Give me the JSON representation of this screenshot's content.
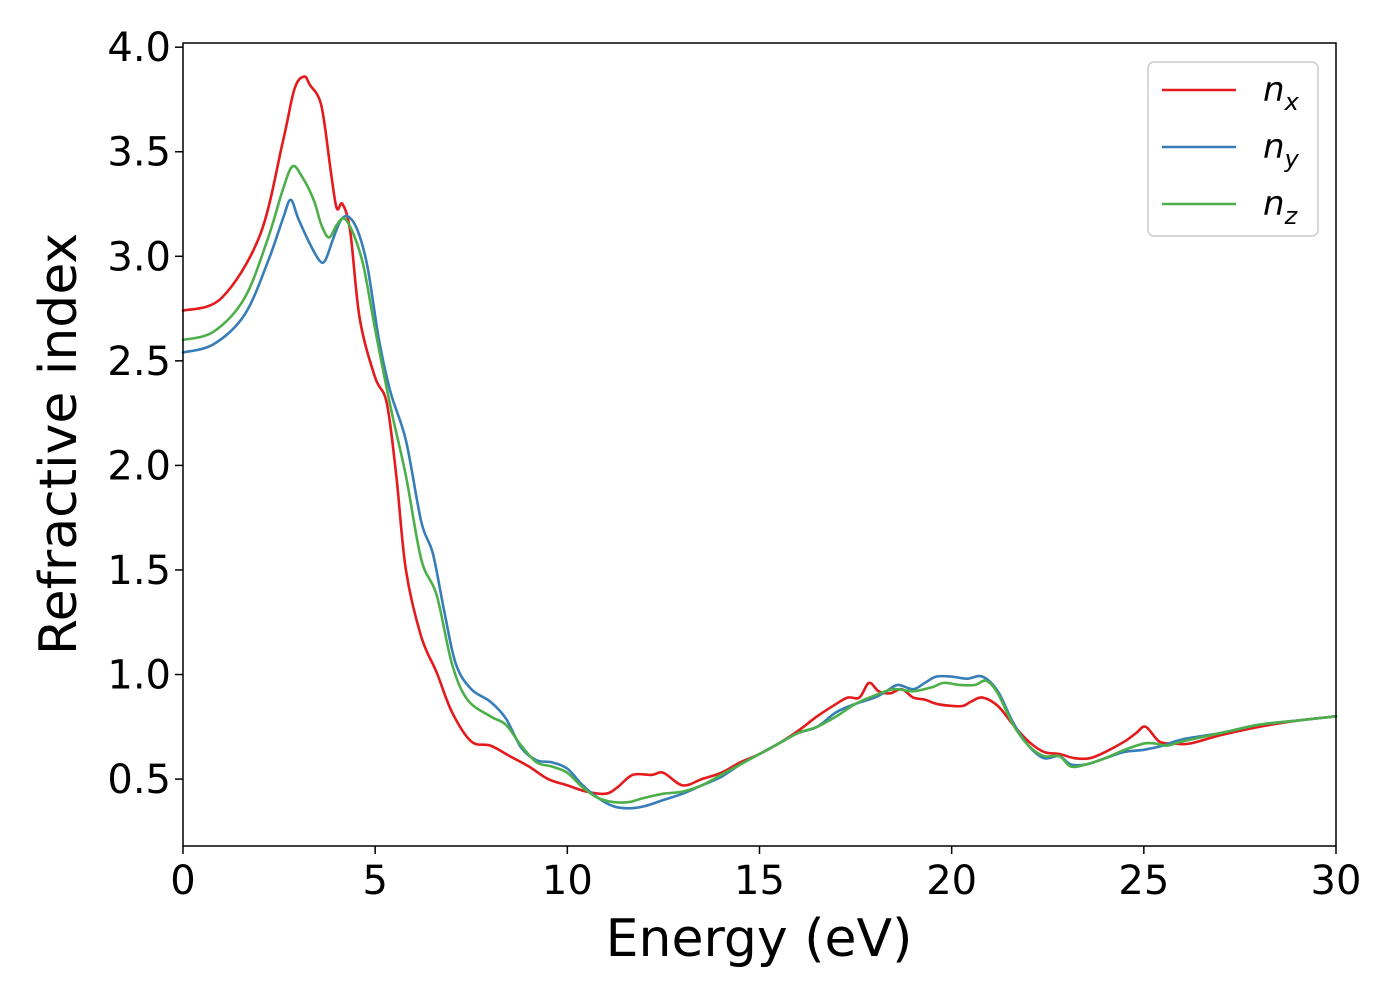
{
  "chart_data": {
    "type": "line",
    "xlabel": "Energy (eV)",
    "ylabel": "Refractive index",
    "xlim": [
      0,
      30
    ],
    "ylim": [
      0.18,
      4.02
    ],
    "x_ticks": [
      0,
      5,
      10,
      15,
      20,
      25,
      30
    ],
    "x_tick_labels": [
      "0",
      "5",
      "10",
      "15",
      "20",
      "25",
      "30"
    ],
    "y_ticks": [
      0.5,
      1.0,
      1.5,
      2.0,
      2.5,
      3.0,
      3.5,
      4.0
    ],
    "y_tick_labels": [
      "0.5",
      "1.0",
      "1.5",
      "2.0",
      "2.5",
      "3.0",
      "3.5",
      "4.0"
    ],
    "grid": false,
    "legend_position": "top-right",
    "series": [
      {
        "name": "n_x",
        "label_base": "n",
        "label_sub": "x",
        "color": "#e41a1c",
        "points": [
          [
            0,
            2.74
          ],
          [
            1,
            2.8
          ],
          [
            2,
            3.1
          ],
          [
            2.6,
            3.55
          ],
          [
            2.9,
            3.8
          ],
          [
            3.15,
            3.86
          ],
          [
            3.3,
            3.82
          ],
          [
            3.6,
            3.72
          ],
          [
            3.85,
            3.4
          ],
          [
            4.0,
            3.23
          ],
          [
            4.15,
            3.25
          ],
          [
            4.35,
            3.12
          ],
          [
            4.6,
            2.7
          ],
          [
            5.0,
            2.42
          ],
          [
            5.3,
            2.3
          ],
          [
            5.55,
            1.95
          ],
          [
            5.8,
            1.5
          ],
          [
            6.2,
            1.18
          ],
          [
            6.6,
            1.01
          ],
          [
            7.0,
            0.82
          ],
          [
            7.5,
            0.68
          ],
          [
            8.0,
            0.66
          ],
          [
            8.5,
            0.61
          ],
          [
            9.0,
            0.56
          ],
          [
            9.5,
            0.5
          ],
          [
            10.0,
            0.47
          ],
          [
            10.5,
            0.44
          ],
          [
            11.0,
            0.43
          ],
          [
            11.3,
            0.46
          ],
          [
            11.7,
            0.52
          ],
          [
            12.2,
            0.52
          ],
          [
            12.5,
            0.53
          ],
          [
            13.0,
            0.47
          ],
          [
            13.5,
            0.5
          ],
          [
            14.0,
            0.53
          ],
          [
            14.5,
            0.58
          ],
          [
            15.0,
            0.62
          ],
          [
            15.5,
            0.67
          ],
          [
            16.0,
            0.73
          ],
          [
            16.5,
            0.8
          ],
          [
            17.0,
            0.86
          ],
          [
            17.3,
            0.89
          ],
          [
            17.6,
            0.89
          ],
          [
            17.85,
            0.96
          ],
          [
            18.1,
            0.92
          ],
          [
            18.4,
            0.91
          ],
          [
            18.7,
            0.93
          ],
          [
            19.0,
            0.89
          ],
          [
            19.3,
            0.88
          ],
          [
            19.6,
            0.86
          ],
          [
            20.0,
            0.85
          ],
          [
            20.3,
            0.85
          ],
          [
            20.5,
            0.87
          ],
          [
            20.8,
            0.89
          ],
          [
            21.2,
            0.85
          ],
          [
            21.6,
            0.76
          ],
          [
            22.0,
            0.68
          ],
          [
            22.4,
            0.63
          ],
          [
            22.8,
            0.62
          ],
          [
            23.2,
            0.6
          ],
          [
            23.6,
            0.6
          ],
          [
            24.0,
            0.63
          ],
          [
            24.5,
            0.68
          ],
          [
            24.8,
            0.72
          ],
          [
            25.05,
            0.75
          ],
          [
            25.4,
            0.68
          ],
          [
            25.8,
            0.67
          ],
          [
            26.2,
            0.67
          ],
          [
            27.0,
            0.71
          ],
          [
            28.0,
            0.75
          ],
          [
            29.0,
            0.78
          ],
          [
            30.0,
            0.8
          ]
        ]
      },
      {
        "name": "n_y",
        "label_base": "n",
        "label_sub": "y",
        "color": "#377eb8",
        "points": [
          [
            0,
            2.54
          ],
          [
            0.8,
            2.58
          ],
          [
            1.6,
            2.72
          ],
          [
            2.2,
            2.97
          ],
          [
            2.6,
            3.18
          ],
          [
            2.8,
            3.27
          ],
          [
            3.0,
            3.18
          ],
          [
            3.3,
            3.06
          ],
          [
            3.55,
            2.98
          ],
          [
            3.7,
            2.98
          ],
          [
            3.9,
            3.08
          ],
          [
            4.1,
            3.17
          ],
          [
            4.3,
            3.19
          ],
          [
            4.55,
            3.12
          ],
          [
            4.8,
            2.95
          ],
          [
            5.1,
            2.6
          ],
          [
            5.4,
            2.35
          ],
          [
            5.8,
            2.12
          ],
          [
            6.2,
            1.73
          ],
          [
            6.5,
            1.58
          ],
          [
            6.8,
            1.3
          ],
          [
            7.1,
            1.05
          ],
          [
            7.5,
            0.93
          ],
          [
            8.0,
            0.87
          ],
          [
            8.4,
            0.79
          ],
          [
            8.8,
            0.65
          ],
          [
            9.2,
            0.59
          ],
          [
            9.6,
            0.58
          ],
          [
            10.0,
            0.55
          ],
          [
            10.4,
            0.47
          ],
          [
            10.8,
            0.41
          ],
          [
            11.2,
            0.37
          ],
          [
            11.6,
            0.36
          ],
          [
            12.0,
            0.37
          ],
          [
            12.5,
            0.4
          ],
          [
            13.0,
            0.43
          ],
          [
            13.5,
            0.47
          ],
          [
            14.0,
            0.51
          ],
          [
            14.5,
            0.57
          ],
          [
            15.0,
            0.62
          ],
          [
            15.5,
            0.67
          ],
          [
            16.0,
            0.72
          ],
          [
            16.5,
            0.75
          ],
          [
            17.0,
            0.82
          ],
          [
            17.5,
            0.86
          ],
          [
            18.0,
            0.89
          ],
          [
            18.3,
            0.92
          ],
          [
            18.6,
            0.95
          ],
          [
            19.0,
            0.93
          ],
          [
            19.3,
            0.96
          ],
          [
            19.6,
            0.99
          ],
          [
            20.0,
            0.99
          ],
          [
            20.4,
            0.98
          ],
          [
            20.8,
            0.99
          ],
          [
            21.2,
            0.92
          ],
          [
            21.6,
            0.77
          ],
          [
            22.0,
            0.66
          ],
          [
            22.4,
            0.6
          ],
          [
            22.8,
            0.61
          ],
          [
            23.1,
            0.57
          ],
          [
            23.5,
            0.57
          ],
          [
            24.0,
            0.6
          ],
          [
            24.5,
            0.63
          ],
          [
            25.0,
            0.64
          ],
          [
            25.5,
            0.66
          ],
          [
            26.0,
            0.69
          ],
          [
            27.0,
            0.72
          ],
          [
            28.0,
            0.76
          ],
          [
            29.0,
            0.78
          ],
          [
            30.0,
            0.8
          ]
        ]
      },
      {
        "name": "n_z",
        "label_base": "n",
        "label_sub": "z",
        "color": "#4daf4a",
        "points": [
          [
            0,
            2.6
          ],
          [
            0.8,
            2.64
          ],
          [
            1.6,
            2.8
          ],
          [
            2.2,
            3.08
          ],
          [
            2.6,
            3.32
          ],
          [
            2.85,
            3.43
          ],
          [
            3.1,
            3.38
          ],
          [
            3.4,
            3.27
          ],
          [
            3.6,
            3.15
          ],
          [
            3.8,
            3.09
          ],
          [
            4.0,
            3.15
          ],
          [
            4.2,
            3.18
          ],
          [
            4.45,
            3.1
          ],
          [
            4.7,
            2.95
          ],
          [
            5.0,
            2.65
          ],
          [
            5.4,
            2.28
          ],
          [
            5.8,
            1.95
          ],
          [
            6.2,
            1.55
          ],
          [
            6.6,
            1.38
          ],
          [
            7.0,
            1.05
          ],
          [
            7.4,
            0.88
          ],
          [
            8.0,
            0.8
          ],
          [
            8.4,
            0.76
          ],
          [
            8.8,
            0.66
          ],
          [
            9.2,
            0.58
          ],
          [
            9.6,
            0.56
          ],
          [
            10.0,
            0.53
          ],
          [
            10.4,
            0.46
          ],
          [
            10.8,
            0.41
          ],
          [
            11.2,
            0.39
          ],
          [
            11.6,
            0.39
          ],
          [
            12.0,
            0.41
          ],
          [
            12.5,
            0.43
          ],
          [
            13.0,
            0.44
          ],
          [
            13.5,
            0.47
          ],
          [
            14.0,
            0.52
          ],
          [
            14.5,
            0.57
          ],
          [
            15.0,
            0.62
          ],
          [
            15.5,
            0.67
          ],
          [
            16.0,
            0.72
          ],
          [
            16.5,
            0.75
          ],
          [
            17.0,
            0.8
          ],
          [
            17.5,
            0.86
          ],
          [
            18.0,
            0.9
          ],
          [
            18.5,
            0.93
          ],
          [
            19.0,
            0.92
          ],
          [
            19.5,
            0.94
          ],
          [
            19.8,
            0.96
          ],
          [
            20.2,
            0.95
          ],
          [
            20.6,
            0.95
          ],
          [
            20.9,
            0.97
          ],
          [
            21.2,
            0.91
          ],
          [
            21.6,
            0.76
          ],
          [
            22.0,
            0.66
          ],
          [
            22.4,
            0.61
          ],
          [
            22.8,
            0.61
          ],
          [
            23.1,
            0.56
          ],
          [
            23.5,
            0.57
          ],
          [
            24.0,
            0.6
          ],
          [
            24.5,
            0.64
          ],
          [
            25.0,
            0.67
          ],
          [
            25.3,
            0.67
          ],
          [
            25.6,
            0.66
          ],
          [
            26.0,
            0.68
          ],
          [
            27.0,
            0.72
          ],
          [
            28.0,
            0.76
          ],
          [
            29.0,
            0.78
          ],
          [
            30.0,
            0.8
          ]
        ]
      }
    ]
  }
}
